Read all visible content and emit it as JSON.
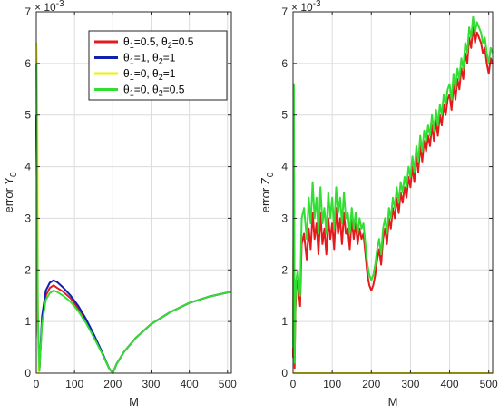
{
  "legend": {
    "entries": [
      {
        "main": "θ",
        "s1": "1",
        "mid": "=0.5, θ",
        "s2": "2",
        "tail": "=0.5",
        "color": "#e41a1c"
      },
      {
        "main": "θ",
        "s1": "1",
        "mid": "=1, θ",
        "s2": "2",
        "tail": "=1",
        "color": "#1020b0"
      },
      {
        "main": "θ",
        "s1": "1",
        "mid": "=0, θ",
        "s2": "2",
        "tail": "=1",
        "color": "#f2f200"
      },
      {
        "main": "θ",
        "s1": "1",
        "mid": "=0, θ",
        "s2": "2",
        "tail": "=0.5",
        "color": "#33dd33"
      }
    ]
  },
  "chart_data": [
    {
      "type": "line",
      "xlabel": "M",
      "ylabel_main": "error Y",
      "ylabel_sub": "0",
      "exponent_base": "× 10",
      "exponent": "-3",
      "xlim": [
        0,
        510
      ],
      "ylim": [
        0,
        7
      ],
      "xticks": [
        0,
        100,
        200,
        300,
        400,
        500
      ],
      "yticks": [
        0,
        1,
        2,
        3,
        4,
        5,
        6,
        7
      ],
      "grid": true,
      "legend_position": "top-right",
      "series": [
        {
          "color": "#e41a1c",
          "width": 2,
          "x": [
            0,
            2,
            4,
            8,
            15,
            25,
            35,
            45,
            55,
            70,
            90,
            110,
            130,
            150,
            170,
            190,
            200,
            210,
            230,
            260,
            300,
            350,
            400,
            450,
            510
          ],
          "y": [
            5.0,
            3.5,
            1.0,
            0.05,
            1.0,
            1.5,
            1.65,
            1.7,
            1.65,
            1.58,
            1.45,
            1.25,
            1.0,
            0.72,
            0.42,
            0.1,
            0.0,
            0.18,
            0.42,
            0.68,
            0.95,
            1.18,
            1.36,
            1.48,
            1.58
          ]
        },
        {
          "color": "#1020b0",
          "width": 2,
          "x": [
            0,
            2,
            4,
            8,
            15,
            25,
            35,
            45,
            55,
            70,
            90,
            110,
            130,
            150,
            170,
            190,
            200,
            210,
            230,
            260,
            300,
            350,
            400,
            450,
            510
          ],
          "y": [
            5.0,
            3.0,
            0.8,
            0.05,
            1.1,
            1.6,
            1.75,
            1.8,
            1.76,
            1.66,
            1.5,
            1.3,
            1.05,
            0.76,
            0.44,
            0.1,
            0.0,
            0.18,
            0.42,
            0.68,
            0.95,
            1.18,
            1.36,
            1.48,
            1.58
          ]
        },
        {
          "color": "#f2f200",
          "width": 2,
          "x": [
            0,
            1,
            2,
            3,
            4,
            6
          ],
          "y": [
            6.4,
            6.3,
            6.0,
            4.5,
            1.0,
            0.0
          ]
        },
        {
          "color": "#33dd33",
          "width": 2,
          "x": [
            0,
            2,
            4,
            8,
            15,
            25,
            35,
            45,
            55,
            70,
            90,
            110,
            130,
            150,
            170,
            190,
            200,
            210,
            230,
            260,
            300,
            350,
            400,
            450,
            510
          ],
          "y": [
            6.0,
            4.0,
            1.2,
            0.05,
            0.95,
            1.42,
            1.55,
            1.6,
            1.57,
            1.5,
            1.38,
            1.2,
            0.97,
            0.7,
            0.41,
            0.1,
            0.0,
            0.18,
            0.42,
            0.68,
            0.95,
            1.18,
            1.36,
            1.48,
            1.58
          ]
        }
      ]
    },
    {
      "type": "line",
      "xlabel": "M",
      "ylabel_main": "error Z",
      "ylabel_sub": "0",
      "exponent_base": "× 10",
      "exponent": "-3",
      "xlim": [
        0,
        510
      ],
      "ylim": [
        0,
        7
      ],
      "xticks": [
        0,
        100,
        200,
        300,
        400,
        500
      ],
      "yticks": [
        0,
        1,
        2,
        3,
        4,
        5,
        6,
        7
      ],
      "grid": true,
      "series": [
        {
          "color": "#e41a1c",
          "width": 2,
          "x": [
            0,
            2,
            4,
            6,
            8,
            12,
            18,
            22,
            28,
            35,
            40,
            45,
            50,
            55,
            60,
            65,
            70,
            75,
            80,
            85,
            90,
            95,
            100,
            105,
            110,
            115,
            120,
            125,
            130,
            135,
            140,
            145,
            150,
            155,
            160,
            165,
            170,
            175,
            180,
            185,
            190,
            195,
            200,
            205,
            210,
            215,
            220,
            225,
            230,
            235,
            240,
            245,
            250,
            255,
            260,
            265,
            270,
            275,
            280,
            285,
            290,
            295,
            300,
            305,
            310,
            315,
            320,
            325,
            330,
            335,
            340,
            345,
            350,
            355,
            360,
            365,
            370,
            375,
            380,
            385,
            390,
            395,
            400,
            405,
            410,
            415,
            420,
            425,
            430,
            435,
            440,
            445,
            450,
            455,
            460,
            465,
            470,
            475,
            480,
            485,
            490,
            495,
            500,
            505,
            510
          ],
          "y": [
            0.3,
            4.5,
            0.1,
            1.2,
            1.6,
            1.8,
            1.3,
            2.5,
            2.7,
            2.2,
            2.8,
            2.4,
            3.1,
            2.6,
            2.9,
            2.3,
            3.1,
            2.5,
            2.8,
            2.3,
            3.0,
            2.6,
            2.9,
            2.4,
            3.2,
            2.7,
            3.0,
            2.5,
            3.1,
            2.7,
            2.8,
            2.4,
            3.0,
            2.6,
            2.9,
            2.5,
            2.8,
            2.6,
            2.7,
            2.3,
            1.9,
            1.7,
            1.6,
            1.7,
            1.9,
            2.2,
            2.4,
            2.1,
            2.6,
            2.8,
            2.5,
            3.0,
            2.8,
            3.2,
            3.0,
            3.4,
            3.1,
            3.5,
            3.3,
            3.6,
            3.4,
            3.8,
            3.6,
            4.0,
            3.7,
            4.2,
            3.9,
            4.4,
            4.1,
            4.5,
            4.3,
            4.6,
            4.4,
            4.8,
            4.5,
            4.9,
            4.6,
            5.0,
            4.8,
            5.2,
            5.0,
            5.3,
            5.4,
            5.1,
            5.6,
            5.3,
            5.7,
            5.5,
            5.9,
            5.7,
            6.2,
            6.0,
            6.5,
            6.3,
            6.7,
            6.4,
            6.6,
            6.5,
            6.4,
            6.2,
            6.3,
            6.0,
            5.8,
            6.1,
            6.0
          ]
        },
        {
          "color": "#33dd33",
          "width": 2,
          "x": [
            0,
            2,
            4,
            6,
            8,
            12,
            18,
            22,
            28,
            35,
            40,
            45,
            50,
            55,
            60,
            65,
            70,
            75,
            80,
            85,
            90,
            95,
            100,
            105,
            110,
            115,
            120,
            125,
            130,
            135,
            140,
            145,
            150,
            155,
            160,
            165,
            170,
            175,
            180,
            185,
            190,
            195,
            200,
            205,
            210,
            215,
            220,
            225,
            230,
            235,
            240,
            245,
            250,
            255,
            260,
            265,
            270,
            275,
            280,
            285,
            290,
            295,
            300,
            305,
            310,
            315,
            320,
            325,
            330,
            335,
            340,
            345,
            350,
            355,
            360,
            365,
            370,
            375,
            380,
            385,
            390,
            395,
            400,
            405,
            410,
            415,
            420,
            425,
            430,
            435,
            440,
            445,
            450,
            455,
            460,
            465,
            470,
            475,
            480,
            485,
            490,
            495,
            500,
            505,
            510
          ],
          "y": [
            0.5,
            5.6,
            0.2,
            1.4,
            1.8,
            2.0,
            1.5,
            3.0,
            3.2,
            2.6,
            3.4,
            2.9,
            3.7,
            3.0,
            3.4,
            2.7,
            3.6,
            2.9,
            3.2,
            2.7,
            3.5,
            3.0,
            3.4,
            2.8,
            3.6,
            3.1,
            3.4,
            2.9,
            3.5,
            3.0,
            3.1,
            2.7,
            3.2,
            2.8,
            3.1,
            2.7,
            3.0,
            2.8,
            2.9,
            2.5,
            2.1,
            1.9,
            1.8,
            1.9,
            2.1,
            2.4,
            2.6,
            2.3,
            2.8,
            3.0,
            2.7,
            3.2,
            3.0,
            3.4,
            3.2,
            3.6,
            3.3,
            3.7,
            3.5,
            3.8,
            3.6,
            4.0,
            3.8,
            4.2,
            3.9,
            4.4,
            4.1,
            4.6,
            4.3,
            4.7,
            4.5,
            4.8,
            4.6,
            5.0,
            4.7,
            5.1,
            4.8,
            5.2,
            5.0,
            5.4,
            5.2,
            5.5,
            5.6,
            5.3,
            5.8,
            5.5,
            5.9,
            5.7,
            6.1,
            5.9,
            6.4,
            6.2,
            6.7,
            6.5,
            6.9,
            6.6,
            6.8,
            6.7,
            6.6,
            6.4,
            6.5,
            6.2,
            6.0,
            6.3,
            6.2
          ]
        },
        {
          "color": "#f2f200",
          "width": 2,
          "x": [
            0,
            510
          ],
          "y": [
            0.0,
            0.0
          ]
        }
      ]
    }
  ]
}
